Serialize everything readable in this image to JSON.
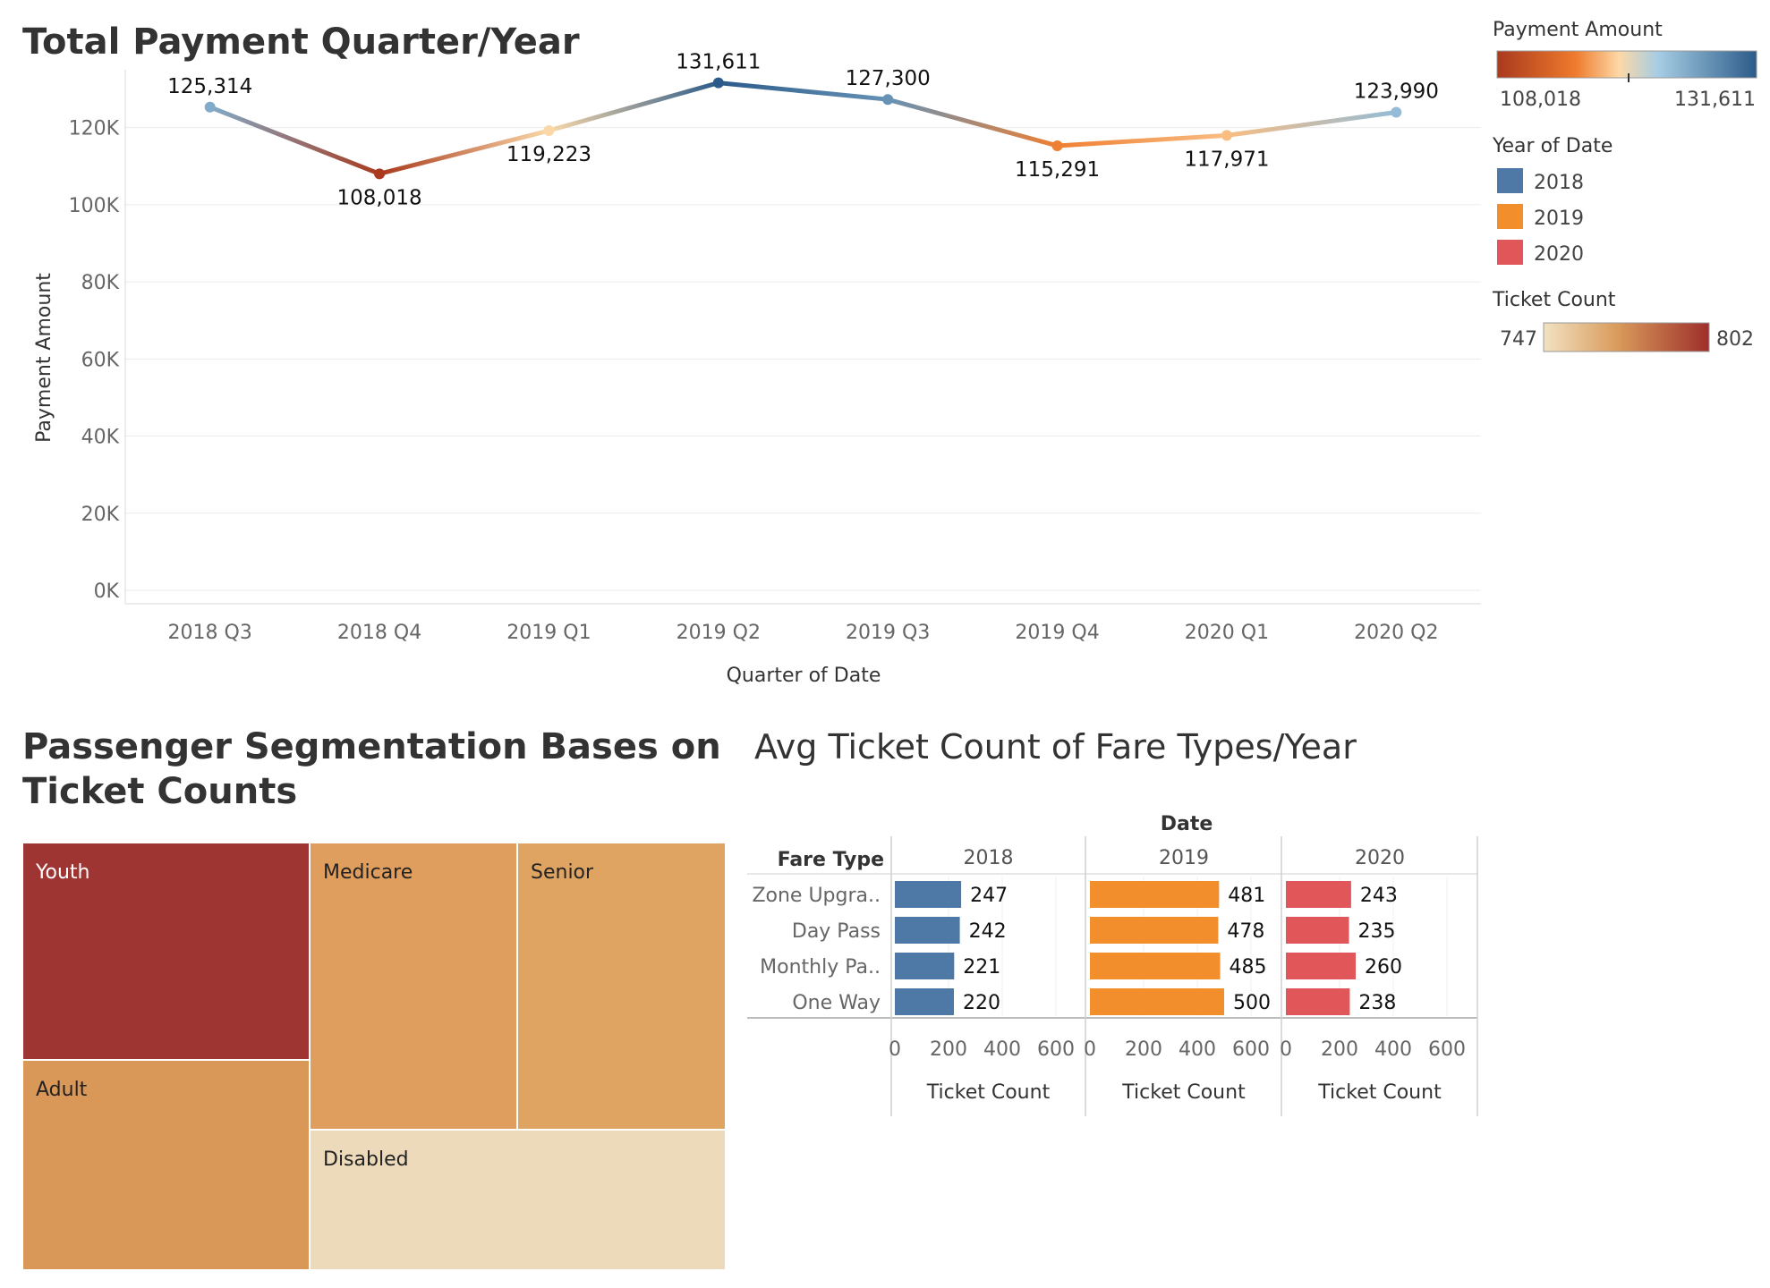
{
  "colors": {
    "year_2018": "#4e79a7",
    "year_2019": "#f28e2b",
    "year_2020": "#e15759",
    "grid": "#ebebeb",
    "axis": "#d9d9d9"
  },
  "legends": {
    "payment_amount": {
      "title": "Payment Amount",
      "min_label": "108,018",
      "max_label": "131,611"
    },
    "year_of_date": {
      "title": "Year of Date",
      "items": [
        {
          "label": "2018",
          "color": "#4e79a7"
        },
        {
          "label": "2019",
          "color": "#f28e2b"
        },
        {
          "label": "2020",
          "color": "#e15759"
        }
      ]
    },
    "ticket_count": {
      "title": "Ticket Count",
      "min_label": "747",
      "max_label": "802"
    }
  },
  "chart_data": [
    {
      "type": "line",
      "title": "Total Payment Quarter/Year",
      "xlabel": "Quarter of Date",
      "ylabel": "Payment Amount",
      "ylim": [
        0,
        135000
      ],
      "yticks": [
        0,
        20000,
        40000,
        60000,
        80000,
        100000,
        120000
      ],
      "ytick_labels": [
        "0K",
        "20K",
        "40K",
        "60K",
        "80K",
        "100K",
        "120K"
      ],
      "categories": [
        "2018 Q3",
        "2018 Q4",
        "2019 Q1",
        "2019 Q2",
        "2019 Q3",
        "2019 Q4",
        "2020 Q1",
        "2020 Q2"
      ],
      "values": [
        125314,
        108018,
        119223,
        131611,
        127300,
        115291,
        117971,
        123990
      ],
      "value_labels": [
        "125,314",
        "108,018",
        "119,223",
        "131,611",
        "127,300",
        "115,291",
        "117,971",
        "123,990"
      ],
      "grid": true,
      "color_scale": {
        "min": 108018,
        "max": 131611
      }
    },
    {
      "type": "treemap",
      "title_line1": "Passenger Segmentation Bases on",
      "title_line2": "Ticket Counts",
      "color_by": "Ticket Count",
      "cells": [
        {
          "label": "Youth",
          "color": "#9e3533"
        },
        {
          "label": "Adult",
          "color": "#da9858"
        },
        {
          "label": "Medicare",
          "color": "#df9d5e"
        },
        {
          "label": "Senior",
          "color": "#e0a462"
        },
        {
          "label": "Disabled",
          "color": "#eddabb"
        }
      ]
    },
    {
      "type": "bar",
      "title": "Avg Ticket Count of Fare Types/Year",
      "column_header": "Date",
      "row_header": "Fare Type",
      "xlabel": "Ticket Count",
      "xlim": [
        0,
        700
      ],
      "xticks": [
        0,
        200,
        400,
        600
      ],
      "categories": [
        "Zone Upgra..",
        "Day Pass",
        "Monthly Pa..",
        "One Way"
      ],
      "series": [
        {
          "name": "2018",
          "color": "#4e79a7",
          "values": [
            247,
            242,
            221,
            220
          ]
        },
        {
          "name": "2019",
          "color": "#f28e2b",
          "values": [
            481,
            478,
            485,
            500
          ]
        },
        {
          "name": "2020",
          "color": "#e15759",
          "values": [
            243,
            235,
            260,
            238
          ]
        }
      ]
    }
  ]
}
